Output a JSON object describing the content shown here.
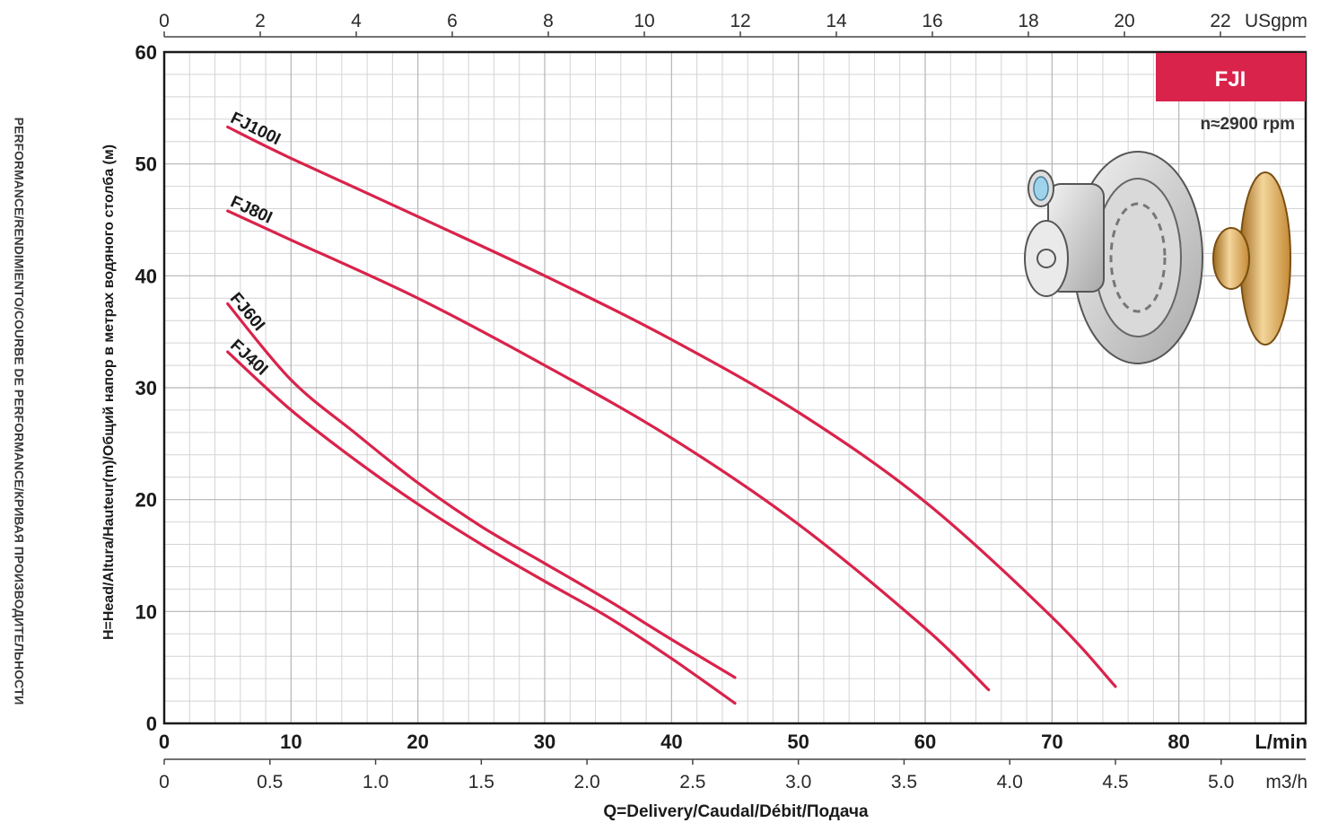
{
  "side_title": "PERFORMANCE/RENDIMIENTO/COURBE DE PERFORMANCE/КРИВАЯ ПРОИЗВОДИТЕЛЬНОСТИ",
  "badge": {
    "label": "FJI",
    "color": "#d9234b"
  },
  "speed": "n≈2900 rpm",
  "curve_color": "#d9234b",
  "chart_data": {
    "type": "line",
    "title": "",
    "xlabel": "Q=Delivery/Caudal/Débit/Подача",
    "ylabel": "H=Head/Altura/Hauteur(m)/Общий напор в метрах водяного столба (м)",
    "x_unit": "L/min",
    "xlim": [
      0,
      90
    ],
    "ylim": [
      0,
      60
    ],
    "grid": true,
    "x_ticks": [
      0,
      10,
      20,
      30,
      40,
      50,
      60,
      70,
      80
    ],
    "y_ticks": [
      0,
      10,
      20,
      30,
      40,
      50,
      60
    ],
    "top_axis": {
      "unit": "USgpm",
      "ticks": [
        "0",
        "2",
        "4",
        "6",
        "8",
        "10",
        "12",
        "14",
        "16",
        "18",
        "20",
        "22"
      ]
    },
    "bottom_secondary_axis": {
      "unit": "m3/h",
      "ticks": [
        "0",
        "0.5",
        "1.0",
        "1.5",
        "2.0",
        "2.5",
        "3.0",
        "3.5",
        "4.0",
        "4.5",
        "5.0"
      ]
    },
    "series": [
      {
        "name": "FJ100I",
        "x": [
          5,
          10,
          20,
          30,
          40,
          50,
          60,
          70,
          75
        ],
        "y": [
          53.3,
          50.5,
          45.3,
          40.0,
          34.3,
          27.8,
          19.8,
          9.5,
          3.3
        ]
      },
      {
        "name": "FJ80I",
        "x": [
          5,
          10,
          20,
          30,
          40,
          50,
          60,
          65
        ],
        "y": [
          45.8,
          43.2,
          38.0,
          32.0,
          25.5,
          17.8,
          8.5,
          3.0
        ]
      },
      {
        "name": "FJ60I",
        "x": [
          5,
          10,
          15,
          20,
          25,
          30,
          35,
          40,
          45
        ],
        "y": [
          37.5,
          30.7,
          26.0,
          21.5,
          17.6,
          14.3,
          11.0,
          7.5,
          4.1
        ]
      },
      {
        "name": "FJ40I",
        "x": [
          5,
          10,
          15,
          20,
          25,
          30,
          35,
          40,
          45
        ],
        "y": [
          33.2,
          28.0,
          23.6,
          19.6,
          16.0,
          12.7,
          9.5,
          5.8,
          1.8
        ]
      }
    ]
  }
}
